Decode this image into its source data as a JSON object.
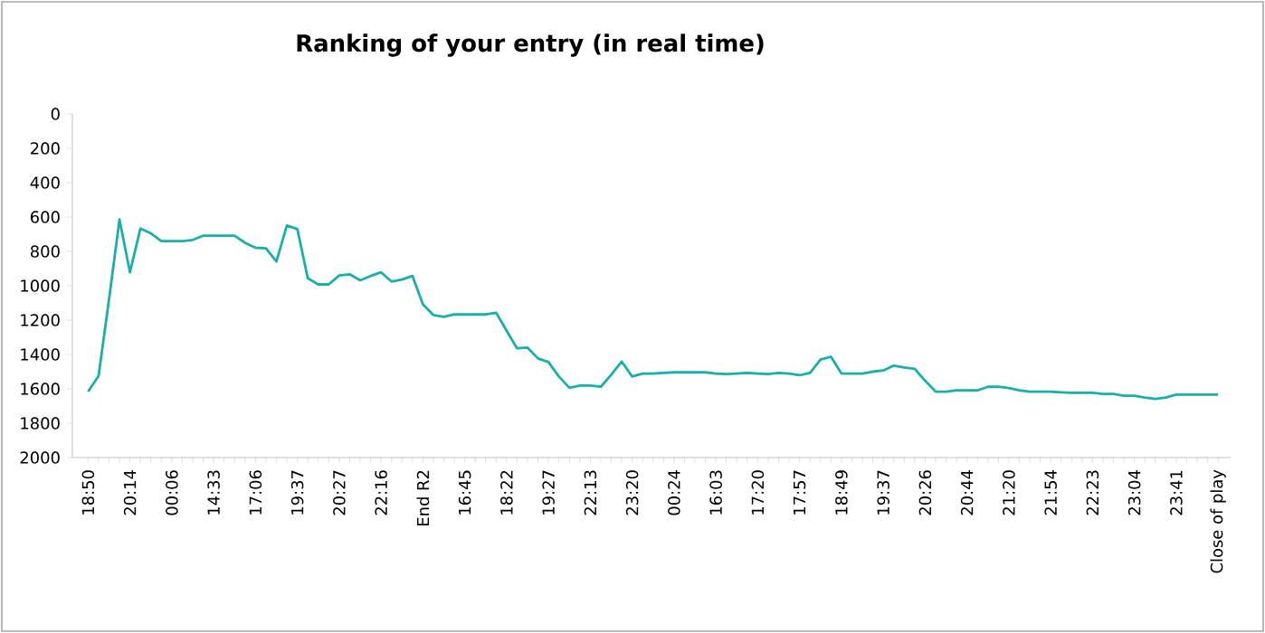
{
  "chart_data": {
    "type": "line",
    "title": "Ranking of your entry (in real time)",
    "categories": [
      "18:50",
      null,
      null,
      null,
      "20:14",
      null,
      null,
      null,
      "00:06",
      null,
      null,
      null,
      "14:33",
      null,
      null,
      null,
      "17:06",
      null,
      null,
      null,
      "19:37",
      null,
      null,
      null,
      "20:27",
      null,
      null,
      null,
      "22:16",
      null,
      null,
      null,
      "End R2",
      null,
      null,
      null,
      "16:45",
      null,
      null,
      null,
      "18:22",
      null,
      null,
      null,
      "19:27",
      null,
      null,
      null,
      "22:13",
      null,
      null,
      null,
      "23:20",
      null,
      null,
      null,
      "00:24",
      null,
      null,
      null,
      "16:03",
      null,
      null,
      null,
      "17:20",
      null,
      null,
      null,
      "17:57",
      null,
      null,
      null,
      "18:49",
      null,
      null,
      null,
      "19:37",
      null,
      null,
      null,
      "20:26",
      null,
      null,
      null,
      "20:44",
      null,
      null,
      null,
      "21:20",
      null,
      null,
      null,
      "21:54",
      null,
      null,
      null,
      "22:23",
      null,
      null,
      null,
      "23:04",
      null,
      null,
      null,
      "23:41",
      null,
      null,
      null,
      "Close of play"
    ],
    "values": [
      1616,
      1525,
      1080,
      614,
      922,
      667,
      695,
      740,
      740,
      740,
      733,
      709,
      709,
      709,
      709,
      750,
      779,
      782,
      859,
      649,
      670,
      957,
      992,
      992,
      940,
      933,
      968,
      943,
      922,
      975,
      964,
      943,
      1108,
      1171,
      1181,
      1167,
      1167,
      1167,
      1167,
      1157,
      1262,
      1364,
      1360,
      1423,
      1444,
      1528,
      1594,
      1581,
      1581,
      1588,
      1518,
      1441,
      1528,
      1511,
      1511,
      1507,
      1504,
      1504,
      1504,
      1504,
      1511,
      1514,
      1511,
      1507,
      1511,
      1514,
      1507,
      1511,
      1521,
      1507,
      1430,
      1413,
      1511,
      1511,
      1511,
      1500,
      1493,
      1465,
      1476,
      1483,
      1553,
      1616,
      1616,
      1609,
      1609,
      1609,
      1588,
      1588,
      1595,
      1609,
      1616,
      1616,
      1616,
      1620,
      1623,
      1623,
      1623,
      1630,
      1630,
      1640,
      1640,
      1651,
      1658,
      1651,
      1634,
      1634,
      1634,
      1634,
      1634
    ],
    "color": "#1aafa8",
    "marker": "none",
    "ylim": [
      2000,
      0
    ],
    "yticks": [
      0,
      200,
      400,
      600,
      800,
      1000,
      1200,
      1400,
      1600,
      1800,
      2000
    ]
  }
}
